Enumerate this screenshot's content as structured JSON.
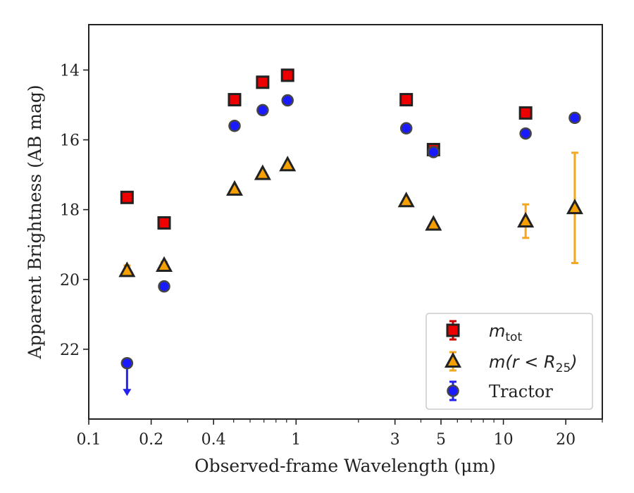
{
  "chart_data": {
    "type": "scatter",
    "xlabel": "Observed-frame Wavelength (μm)",
    "ylabel": "Apparent Brightness (AB mag)",
    "x_scale": "log",
    "xlim": [
      0.1,
      30
    ],
    "ylim": [
      24.0,
      12.7
    ],
    "y_inverted": true,
    "x_ticks": [
      {
        "value": 0.1,
        "label": "0.1"
      },
      {
        "value": 0.2,
        "label": "0.2"
      },
      {
        "value": 0.4,
        "label": "0.4"
      },
      {
        "value": 1,
        "label": "1"
      },
      {
        "value": 3,
        "label": "3"
      },
      {
        "value": 5,
        "label": "5"
      },
      {
        "value": 10,
        "label": "10"
      },
      {
        "value": 20,
        "label": "20"
      }
    ],
    "y_ticks": [
      {
        "value": 14,
        "label": "14"
      },
      {
        "value": 16,
        "label": "16"
      },
      {
        "value": 18,
        "label": "18"
      },
      {
        "value": 20,
        "label": "20"
      },
      {
        "value": 22,
        "label": "22"
      }
    ],
    "grid": false,
    "legend_position": "lower-right",
    "series": [
      {
        "name": "m_tot",
        "legend_label": {
          "main": "m",
          "sub": "tot"
        },
        "marker": "square",
        "color": "#ee0000",
        "edge_color": "#222222",
        "error_color": "#cc0000",
        "points": [
          {
            "x": 0.153,
            "y": 17.65,
            "err": 0.05
          },
          {
            "x": 0.231,
            "y": 18.38,
            "err": 0.05
          },
          {
            "x": 0.505,
            "y": 14.85,
            "err": 0.05
          },
          {
            "x": 0.69,
            "y": 14.35,
            "err": 0.05
          },
          {
            "x": 0.91,
            "y": 14.15,
            "err": 0.05
          },
          {
            "x": 3.4,
            "y": 14.85,
            "err": 0.05
          },
          {
            "x": 4.6,
            "y": 16.28,
            "err": 0.05
          },
          {
            "x": 12.8,
            "y": 15.23,
            "err": 0.05
          }
        ]
      },
      {
        "name": "m(r < R25)",
        "legend_label": {
          "main": "m(r < R",
          "sub": "25",
          "tail": ")"
        },
        "marker": "triangle",
        "color": "#f5a000",
        "edge_color": "#222222",
        "error_color": "#f5a623",
        "points": [
          {
            "x": 0.153,
            "y": 19.75,
            "err": 0.15
          },
          {
            "x": 0.231,
            "y": 19.6,
            "err": 0.1
          },
          {
            "x": 0.505,
            "y": 17.42,
            "err": 0.05
          },
          {
            "x": 0.69,
            "y": 16.97,
            "err": 0.05
          },
          {
            "x": 0.91,
            "y": 16.72,
            "err": 0.05
          },
          {
            "x": 3.4,
            "y": 17.75,
            "err": 0.05
          },
          {
            "x": 4.6,
            "y": 18.42,
            "err": 0.05
          },
          {
            "x": 12.8,
            "y": 18.33,
            "err": 0.48
          },
          {
            "x": 22.1,
            "y": 17.95,
            "err": 1.58
          }
        ]
      },
      {
        "name": "Tractor",
        "legend_label": {
          "main": "Tractor"
        },
        "marker": "circle",
        "color": "#1a1aff",
        "edge_color": "#444444",
        "error_color": "#2222ee",
        "points": [
          {
            "x": 0.153,
            "y": 22.4,
            "err": 0.05,
            "upper_limit": true,
            "arrow_to": 23.3
          },
          {
            "x": 0.231,
            "y": 20.2,
            "err": 0.05
          },
          {
            "x": 0.505,
            "y": 15.6,
            "err": 0.05
          },
          {
            "x": 0.69,
            "y": 15.15,
            "err": 0.05
          },
          {
            "x": 0.91,
            "y": 14.87,
            "err": 0.05
          },
          {
            "x": 3.4,
            "y": 15.67,
            "err": 0.05
          },
          {
            "x": 4.6,
            "y": 16.35,
            "err": 0.05
          },
          {
            "x": 12.8,
            "y": 15.82,
            "err": 0.05
          },
          {
            "x": 22.1,
            "y": 15.37,
            "err": 0.05
          }
        ]
      }
    ]
  }
}
